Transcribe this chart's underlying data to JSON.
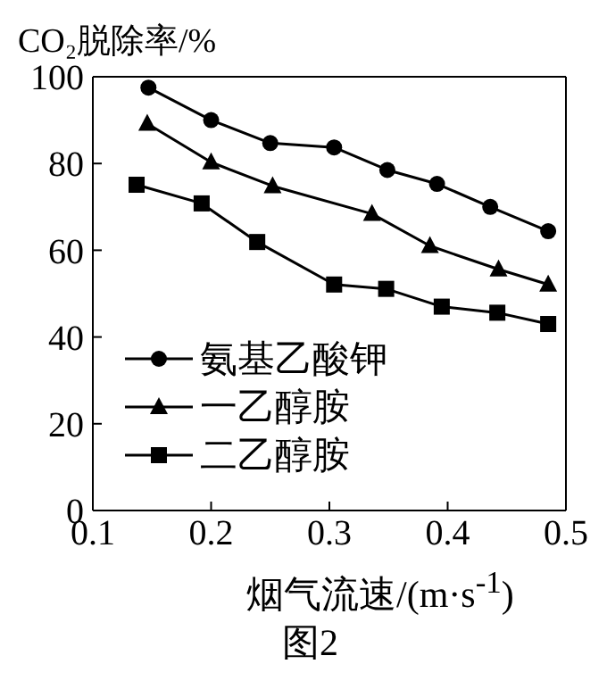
{
  "chart_data": {
    "type": "line",
    "ylabel": "CO₂脱除率/%",
    "xlabel": "烟气流速/(m·s$^{-1}$)",
    "annotations": [
      "图2"
    ],
    "xlim": [
      0.1,
      0.5
    ],
    "xticks": [
      0.1,
      0.2,
      0.3,
      0.4,
      0.5
    ],
    "ylim": [
      0,
      100
    ],
    "yticks": [
      0,
      20,
      40,
      60,
      80,
      100
    ],
    "grid": false,
    "legend": "bottom left",
    "line_style": "solid",
    "series": [
      {
        "name": "氨基乙酸钾",
        "color": "#000000",
        "marker": "circle",
        "x": [
          0.147,
          0.2,
          0.25,
          0.304,
          0.349,
          0.391,
          0.436,
          0.485
        ],
        "values": [
          97.5,
          90,
          84.7,
          83.7,
          78.5,
          75.3,
          70,
          64.4
        ]
      },
      {
        "name": "一乙醇胺",
        "color": "#000000",
        "marker": "triangle",
        "x": [
          0.146,
          0.2,
          0.252,
          0.336,
          0.385,
          0.443,
          0.485
        ],
        "values": [
          89.2,
          80.3,
          74.8,
          68.4,
          61,
          55.6,
          52.1
        ]
      },
      {
        "name": "二乙醇胺",
        "color": "#000000",
        "marker": "square",
        "x": [
          0.137,
          0.192,
          0.239,
          0.304,
          0.348,
          0.395,
          0.442,
          0.485
        ],
        "values": [
          75.1,
          70.8,
          61.9,
          52.1,
          51.1,
          47,
          45.6,
          43
        ]
      }
    ]
  }
}
